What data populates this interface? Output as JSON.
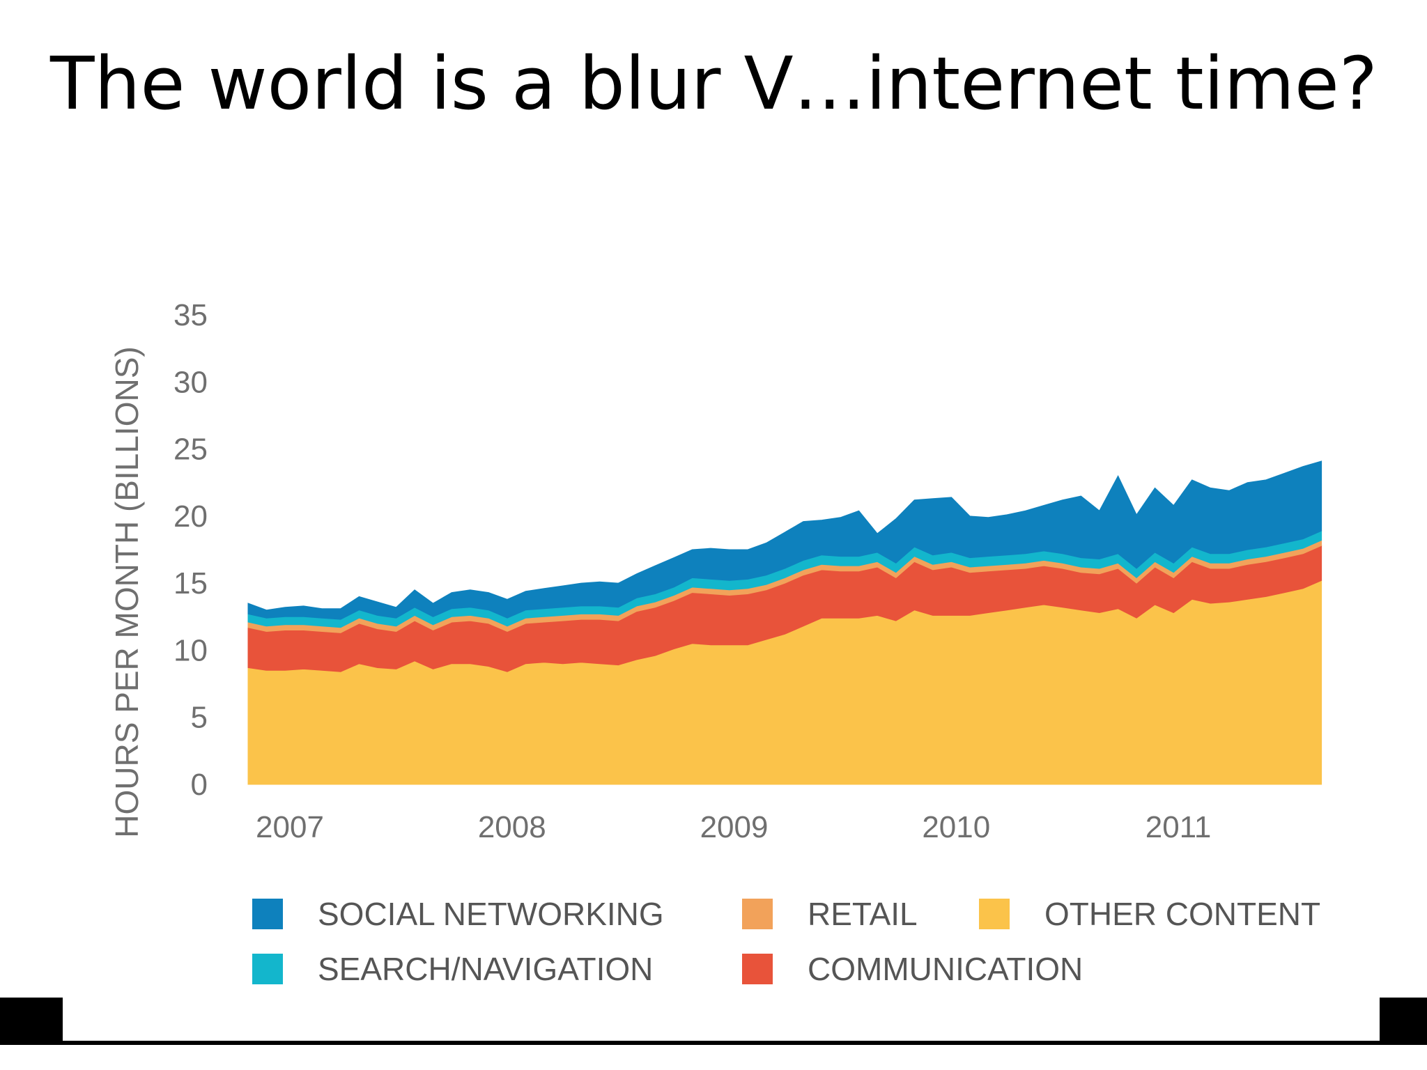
{
  "slide": {
    "title": "The world is a blur V…internet time?"
  },
  "chart_data": {
    "type": "area",
    "stacked": true,
    "title": "",
    "xlabel": "",
    "ylabel": "HOURS PER MONTH (BILLIONS)",
    "ylim": [
      0,
      35
    ],
    "yticks": [
      0,
      5,
      10,
      15,
      20,
      25,
      30,
      35
    ],
    "xlim": [
      2007,
      2011.85
    ],
    "xticks": [
      2007,
      2008,
      2009,
      2010,
      2011
    ],
    "grid": false,
    "legend_position": "bottom",
    "legend_order": [
      "SOCIAL NETWORKING",
      "RETAIL",
      "OTHER CONTENT",
      "SEARCH/NAVIGATION",
      "COMMUNICATION"
    ],
    "x": [
      2007.0,
      2007.083,
      2007.167,
      2007.25,
      2007.333,
      2007.417,
      2007.5,
      2007.583,
      2007.667,
      2007.75,
      2007.833,
      2007.917,
      2008.0,
      2008.083,
      2008.167,
      2008.25,
      2008.333,
      2008.417,
      2008.5,
      2008.583,
      2008.667,
      2008.75,
      2008.833,
      2008.917,
      2009.0,
      2009.083,
      2009.167,
      2009.25,
      2009.333,
      2009.417,
      2009.5,
      2009.583,
      2009.667,
      2009.75,
      2009.833,
      2009.917,
      2010.0,
      2010.083,
      2010.167,
      2010.25,
      2010.333,
      2010.417,
      2010.5,
      2010.583,
      2010.667,
      2010.75,
      2010.833,
      2010.917,
      2011.0,
      2011.083,
      2011.167,
      2011.25,
      2011.333,
      2011.417,
      2011.5,
      2011.583,
      2011.667,
      2011.75,
      2011.833
    ],
    "series": [
      {
        "name": "OTHER CONTENT",
        "color": "#FBC34A",
        "values": [
          8.7,
          8.5,
          8.5,
          8.6,
          8.5,
          8.4,
          9.0,
          8.7,
          8.6,
          9.2,
          8.6,
          9.0,
          9.0,
          8.8,
          8.4,
          9.0,
          9.1,
          9.0,
          9.1,
          9.0,
          8.9,
          9.3,
          9.6,
          10.1,
          10.5,
          10.4,
          10.4,
          10.4,
          10.8,
          11.2,
          11.8,
          12.4,
          12.4,
          12.4,
          12.6,
          12.2,
          13.0,
          12.6,
          12.6,
          12.6,
          12.8,
          13.0,
          13.2,
          13.4,
          13.2,
          13.0,
          12.8,
          13.1,
          12.4,
          13.4,
          12.8,
          13.8,
          13.5,
          13.6,
          13.8,
          14.0,
          14.3,
          14.6,
          15.2
        ]
      },
      {
        "name": "COMMUNICATION",
        "color": "#E8533A",
        "values": [
          3.0,
          2.9,
          3.0,
          2.9,
          2.9,
          2.9,
          3.0,
          2.9,
          2.8,
          3.0,
          2.9,
          3.1,
          3.2,
          3.2,
          3.0,
          3.0,
          3.0,
          3.2,
          3.2,
          3.3,
          3.3,
          3.6,
          3.6,
          3.6,
          3.8,
          3.8,
          3.7,
          3.8,
          3.7,
          3.8,
          3.8,
          3.6,
          3.5,
          3.5,
          3.6,
          3.2,
          3.6,
          3.4,
          3.6,
          3.2,
          3.1,
          3.0,
          2.9,
          2.9,
          2.9,
          2.8,
          2.9,
          3.0,
          2.6,
          2.8,
          2.6,
          2.8,
          2.6,
          2.5,
          2.6,
          2.6,
          2.6,
          2.6,
          2.6
        ]
      },
      {
        "name": "RETAIL",
        "color": "#F2A25A",
        "values": [
          0.4,
          0.4,
          0.4,
          0.4,
          0.4,
          0.4,
          0.4,
          0.4,
          0.4,
          0.4,
          0.4,
          0.4,
          0.4,
          0.4,
          0.4,
          0.4,
          0.4,
          0.4,
          0.4,
          0.4,
          0.4,
          0.4,
          0.4,
          0.4,
          0.4,
          0.4,
          0.4,
          0.4,
          0.4,
          0.4,
          0.4,
          0.4,
          0.4,
          0.4,
          0.4,
          0.4,
          0.4,
          0.4,
          0.4,
          0.4,
          0.4,
          0.4,
          0.4,
          0.4,
          0.4,
          0.4,
          0.4,
          0.4,
          0.4,
          0.4,
          0.4,
          0.4,
          0.4,
          0.4,
          0.4,
          0.4,
          0.4,
          0.4,
          0.4
        ]
      },
      {
        "name": "SEARCH/NAVIGATION",
        "color": "#13B6CC",
        "values": [
          0.6,
          0.6,
          0.6,
          0.6,
          0.6,
          0.6,
          0.6,
          0.6,
          0.6,
          0.6,
          0.6,
          0.6,
          0.6,
          0.6,
          0.6,
          0.6,
          0.6,
          0.6,
          0.6,
          0.6,
          0.6,
          0.6,
          0.6,
          0.6,
          0.7,
          0.7,
          0.7,
          0.7,
          0.7,
          0.7,
          0.7,
          0.7,
          0.7,
          0.7,
          0.7,
          0.7,
          0.7,
          0.7,
          0.7,
          0.7,
          0.7,
          0.7,
          0.7,
          0.7,
          0.7,
          0.7,
          0.7,
          0.7,
          0.7,
          0.7,
          0.7,
          0.7,
          0.7,
          0.7,
          0.7,
          0.7,
          0.7,
          0.7,
          0.7
        ]
      },
      {
        "name": "SOCIAL NETWORKING",
        "color": "#0E81BD",
        "values": [
          0.8,
          0.6,
          0.7,
          0.8,
          0.7,
          0.8,
          1.0,
          1.0,
          0.8,
          1.3,
          1.0,
          1.2,
          1.3,
          1.3,
          1.4,
          1.4,
          1.5,
          1.6,
          1.7,
          1.8,
          1.8,
          1.8,
          2.1,
          2.2,
          2.1,
          2.3,
          2.3,
          2.2,
          2.4,
          2.7,
          2.9,
          2.6,
          2.9,
          3.4,
          1.4,
          3.3,
          3.5,
          4.2,
          4.1,
          3.1,
          2.9,
          3.0,
          3.2,
          3.4,
          4.0,
          4.6,
          3.6,
          5.8,
          4.0,
          4.8,
          4.3,
          5.0,
          4.9,
          4.7,
          5.0,
          5.0,
          5.2,
          5.4,
          5.2
        ]
      }
    ]
  }
}
